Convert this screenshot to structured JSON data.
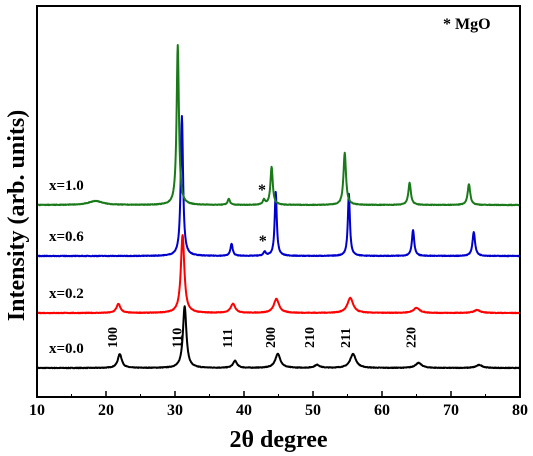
{
  "chart_data": {
    "type": "line",
    "title": "",
    "xlabel": "2θ degree",
    "ylabel": "Intensity (arb. units)",
    "xlim": [
      10,
      80
    ],
    "x_ticks": [
      10,
      20,
      30,
      40,
      50,
      60,
      70,
      80
    ],
    "y_ticks_shown": false,
    "grid": false,
    "annotation_note": "* MgO",
    "series": [
      {
        "name": "x=0.0",
        "color": "#000000",
        "baseline": 0.0,
        "peaks": [
          {
            "x": 22.0,
            "h": 0.14,
            "w": 0.35
          },
          {
            "x": 31.4,
            "h": 0.62,
            "w": 0.3
          },
          {
            "x": 38.7,
            "h": 0.07,
            "w": 0.35
          },
          {
            "x": 44.9,
            "h": 0.14,
            "w": 0.45
          },
          {
            "x": 50.6,
            "h": 0.03,
            "w": 0.45
          },
          {
            "x": 55.8,
            "h": 0.14,
            "w": 0.5
          },
          {
            "x": 65.3,
            "h": 0.05,
            "w": 0.55
          },
          {
            "x": 74.1,
            "h": 0.03,
            "w": 0.55
          }
        ],
        "hkl_labels": [
          {
            "text": "100",
            "x": 22.0
          },
          {
            "text": "110",
            "x": 31.4
          },
          {
            "text": "111",
            "x": 38.7
          },
          {
            "text": "200",
            "x": 44.9
          },
          {
            "text": "210",
            "x": 50.6
          },
          {
            "text": "211",
            "x": 55.8
          },
          {
            "text": "220",
            "x": 65.3
          }
        ],
        "mgo_markers": []
      },
      {
        "name": "x=0.2",
        "color": "#ff0000",
        "baseline": 0.55,
        "peaks": [
          {
            "x": 21.8,
            "h": 0.09,
            "w": 0.35
          },
          {
            "x": 31.1,
            "h": 0.78,
            "w": 0.3
          },
          {
            "x": 38.4,
            "h": 0.09,
            "w": 0.4
          },
          {
            "x": 44.7,
            "h": 0.14,
            "w": 0.45
          },
          {
            "x": 55.4,
            "h": 0.15,
            "w": 0.5
          },
          {
            "x": 65.0,
            "h": 0.05,
            "w": 0.55
          },
          {
            "x": 73.8,
            "h": 0.03,
            "w": 0.55
          }
        ],
        "mgo_markers": []
      },
      {
        "name": "x=0.6",
        "color": "#0000cc",
        "baseline": 1.12,
        "peaks": [
          {
            "x": 31.0,
            "h": 1.4,
            "w": 0.2
          },
          {
            "x": 38.2,
            "h": 0.12,
            "w": 0.2
          },
          {
            "x": 43.0,
            "h": 0.04,
            "w": 0.2
          },
          {
            "x": 44.6,
            "h": 0.64,
            "w": 0.18
          },
          {
            "x": 55.2,
            "h": 0.62,
            "w": 0.18
          },
          {
            "x": 64.5,
            "h": 0.26,
            "w": 0.2
          },
          {
            "x": 73.3,
            "h": 0.24,
            "w": 0.22
          }
        ],
        "mgo_markers": [
          {
            "x": 43.0
          }
        ]
      },
      {
        "name": "x=1.0",
        "color": "#1a7a1a",
        "baseline": 1.63,
        "peaks": [
          {
            "x": 18.5,
            "h": 0.04,
            "w": 1.2
          },
          {
            "x": 30.4,
            "h": 1.6,
            "w": 0.2
          },
          {
            "x": 37.8,
            "h": 0.06,
            "w": 0.2
          },
          {
            "x": 42.9,
            "h": 0.05,
            "w": 0.2
          },
          {
            "x": 44.0,
            "h": 0.38,
            "w": 0.2
          },
          {
            "x": 54.6,
            "h": 0.52,
            "w": 0.22
          },
          {
            "x": 64.0,
            "h": 0.22,
            "w": 0.22
          },
          {
            "x": 72.6,
            "h": 0.21,
            "w": 0.22
          }
        ],
        "mgo_markers": [
          {
            "x": 42.9
          }
        ]
      }
    ]
  }
}
